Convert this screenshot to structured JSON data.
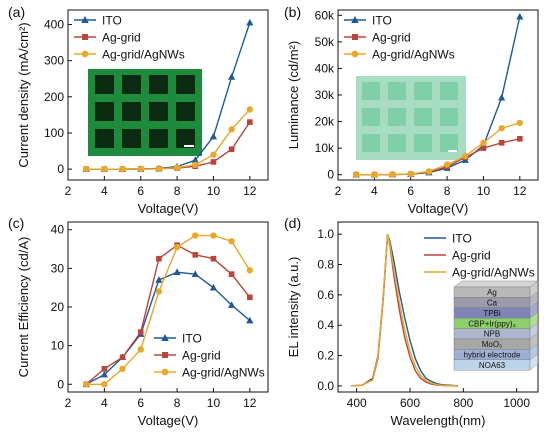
{
  "colors": {
    "ITO": "#1f5a96",
    "Ag-grid": "#b8463d",
    "Ag-grid/AgNWs": "#e8a82a",
    "axis": "#111111",
    "inset_grid_bg": "#1e8a3c",
    "inset_grid_cell": "#0b2a12",
    "inset_lum_bg": "#a8ddc4",
    "inset_lum_cell": "#7fd0a8"
  },
  "chart_data": [
    {
      "panel": "(a)",
      "type": "line",
      "xlabel": "Voltage(V)",
      "ylabel": "Current density (mA/cm²)",
      "xlim": [
        2,
        13
      ],
      "ylim": [
        -30,
        440
      ],
      "xticks": [
        2,
        4,
        6,
        8,
        10,
        12
      ],
      "yticks": [
        0,
        100,
        200,
        300,
        400
      ],
      "yticklabels": [
        "0",
        "100",
        "200",
        "300",
        "400"
      ],
      "x": [
        3,
        4,
        5,
        6,
        7,
        8,
        9,
        10,
        11,
        12
      ],
      "legend_position": "top-left",
      "inset": "microscope-grid",
      "series": [
        {
          "name": "ITO",
          "marker": "triangle",
          "values": [
            0,
            0,
            0,
            0.5,
            2,
            7,
            25,
            90,
            255,
            405
          ]
        },
        {
          "name": "Ag-grid",
          "marker": "square",
          "values": [
            0,
            0,
            0,
            0.3,
            1,
            3,
            8,
            20,
            55,
            130
          ]
        },
        {
          "name": "Ag-grid/AgNWs",
          "marker": "circle",
          "values": [
            0,
            0,
            0,
            0.3,
            1,
            4,
            12,
            40,
            110,
            165
          ]
        }
      ]
    },
    {
      "panel": "(b)",
      "type": "line",
      "xlabel": "Voltage(V)",
      "ylabel": "Luminance (cd/m²)",
      "xlim": [
        2,
        13
      ],
      "ylim": [
        -2000,
        62000
      ],
      "xticks": [
        2,
        4,
        6,
        8,
        10,
        12
      ],
      "yticks": [
        0,
        10000,
        20000,
        30000,
        40000,
        50000,
        60000
      ],
      "yticklabels": [
        "0",
        "10k",
        "20k",
        "30k",
        "40k",
        "50k",
        "60k"
      ],
      "x": [
        3,
        4,
        5,
        6,
        7,
        8,
        9,
        10,
        11,
        12
      ],
      "legend_position": "top-left",
      "inset": "luminance-grid",
      "series": [
        {
          "name": "ITO",
          "marker": "triangle",
          "values": [
            0,
            0,
            50,
            200,
            800,
            2500,
            5500,
            11000,
            29000,
            59500
          ]
        },
        {
          "name": "Ag-grid",
          "marker": "square",
          "values": [
            0,
            0,
            50,
            250,
            1000,
            3000,
            6500,
            10000,
            12000,
            13500
          ]
        },
        {
          "name": "Ag-grid/AgNWs",
          "marker": "circle",
          "values": [
            0,
            0,
            50,
            300,
            1200,
            3800,
            7000,
            12000,
            17500,
            19500
          ]
        }
      ]
    },
    {
      "panel": "(c)",
      "type": "line",
      "xlabel": "Voltage(V)",
      "ylabel": "Current Efficiency (cd/A)",
      "xlim": [
        2,
        13
      ],
      "ylim": [
        -2,
        42
      ],
      "xticks": [
        2,
        4,
        6,
        8,
        10,
        12
      ],
      "yticks": [
        0,
        10,
        20,
        30,
        40
      ],
      "yticklabels": [
        "0",
        "10",
        "20",
        "30",
        "40"
      ],
      "x": [
        3,
        4,
        5,
        6,
        7,
        8,
        9,
        10,
        11,
        12
      ],
      "legend_position": "bottom-right",
      "series": [
        {
          "name": "ITO",
          "marker": "triangle",
          "values": [
            0,
            2.5,
            7,
            13,
            27,
            29,
            28.5,
            25,
            20.5,
            16.5
          ]
        },
        {
          "name": "Ag-grid",
          "marker": "square",
          "values": [
            0,
            4,
            7,
            13.5,
            32.5,
            36,
            33.5,
            32.5,
            28.5,
            22.5
          ]
        },
        {
          "name": "Ag-grid/AgNWs",
          "marker": "circle",
          "values": [
            0,
            0,
            4,
            9,
            24,
            35.5,
            38.5,
            38.5,
            37,
            29.5
          ]
        }
      ]
    },
    {
      "panel": "(d)",
      "type": "line",
      "xlabel": "Wavelength(nm)",
      "ylabel": "EL intensity (a.u.)",
      "xlim": [
        330,
        1080
      ],
      "ylim": [
        -0.04,
        1.08
      ],
      "xticks": [
        400,
        600,
        800,
        1000
      ],
      "yticks": [
        0,
        0.2,
        0.4,
        0.6,
        0.8,
        1.0
      ],
      "yticklabels": [
        "0.0",
        "0.2",
        "0.4",
        "0.6",
        "0.8",
        "1.0"
      ],
      "legend_position": "top-right",
      "inset": "device-stack",
      "series": [
        {
          "name": "ITO",
          "x": [
            380,
            420,
            460,
            480,
            500,
            510,
            516,
            525,
            540,
            560,
            580,
            600,
            620,
            640,
            660,
            680,
            700,
            720,
            760,
            780
          ],
          "values": [
            0,
            0.005,
            0.05,
            0.2,
            0.6,
            0.85,
            1.0,
            0.95,
            0.82,
            0.62,
            0.45,
            0.3,
            0.18,
            0.1,
            0.05,
            0.03,
            0.015,
            0.008,
            0.003,
            0
          ]
        },
        {
          "name": "Ag-grid",
          "x": [
            380,
            420,
            460,
            480,
            500,
            510,
            516,
            525,
            540,
            560,
            580,
            600,
            620,
            640,
            660,
            680,
            700,
            720,
            760,
            780
          ],
          "values": [
            0,
            0.005,
            0.04,
            0.18,
            0.58,
            0.84,
            1.0,
            0.92,
            0.72,
            0.5,
            0.32,
            0.19,
            0.1,
            0.05,
            0.025,
            0.012,
            0.006,
            0.003,
            0.001,
            0
          ]
        },
        {
          "name": "Ag-grid/AgNWs",
          "x": [
            380,
            420,
            460,
            480,
            500,
            510,
            516,
            525,
            540,
            560,
            580,
            600,
            620,
            640,
            660,
            680,
            700,
            720,
            760,
            780
          ],
          "values": [
            0,
            0.005,
            0.04,
            0.19,
            0.6,
            0.85,
            1.0,
            0.93,
            0.76,
            0.55,
            0.37,
            0.23,
            0.13,
            0.07,
            0.035,
            0.018,
            0.009,
            0.004,
            0.001,
            0
          ]
        }
      ],
      "device_stack": [
        "Ag",
        "Ca",
        "TPBi",
        "CBP+Ir(ppy)₃",
        "NPB",
        "MoO₃",
        "hybrid electrode",
        "NOA63"
      ]
    }
  ]
}
